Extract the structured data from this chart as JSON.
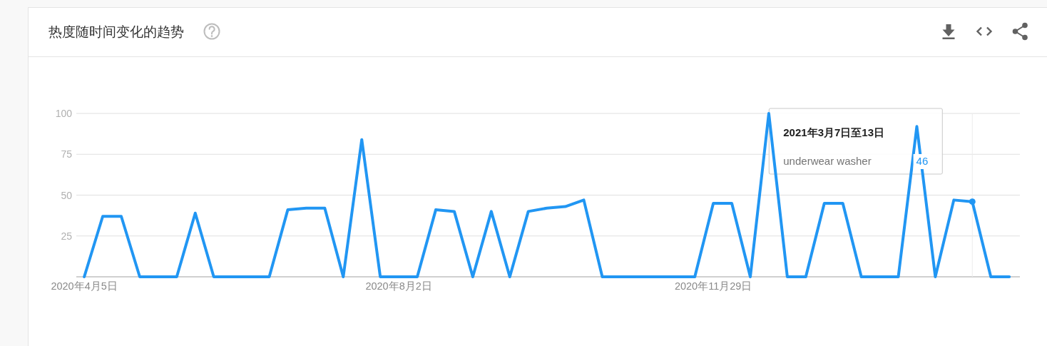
{
  "chart_data": {
    "type": "line",
    "title": "热度随时间变化的趋势",
    "x": [
      "2020-04-05",
      "2020-04-12",
      "2020-04-19",
      "2020-04-26",
      "2020-05-03",
      "2020-05-10",
      "2020-05-17",
      "2020-05-24",
      "2020-05-31",
      "2020-06-07",
      "2020-06-14",
      "2020-06-21",
      "2020-06-28",
      "2020-07-05",
      "2020-07-12",
      "2020-07-19",
      "2020-07-26",
      "2020-08-02",
      "2020-08-09",
      "2020-08-16",
      "2020-08-23",
      "2020-08-30",
      "2020-09-06",
      "2020-09-13",
      "2020-09-20",
      "2020-09-27",
      "2020-10-04",
      "2020-10-11",
      "2020-10-18",
      "2020-10-25",
      "2020-11-01",
      "2020-11-08",
      "2020-11-15",
      "2020-11-22",
      "2020-11-29",
      "2020-12-06",
      "2020-12-13",
      "2020-12-20",
      "2020-12-27",
      "2021-01-03",
      "2021-01-10",
      "2021-01-17",
      "2021-01-24",
      "2021-01-31",
      "2021-02-07",
      "2021-02-14",
      "2021-02-21",
      "2021-02-28",
      "2021-03-07",
      "2021-03-14",
      "2021-03-21"
    ],
    "series": [
      {
        "name": "underwear washer",
        "color": "#2196f3",
        "values": [
          0,
          37,
          37,
          0,
          0,
          0,
          39,
          0,
          0,
          0,
          0,
          41,
          42,
          42,
          0,
          84,
          0,
          0,
          0,
          41,
          40,
          0,
          40,
          0,
          40,
          42,
          43,
          47,
          0,
          0,
          0,
          0,
          0,
          0,
          45,
          45,
          0,
          100,
          0,
          0,
          45,
          45,
          0,
          0,
          0,
          92,
          0,
          47,
          46,
          0,
          0
        ]
      }
    ],
    "xlim": [
      "2020-04-02",
      "2021-03-25"
    ],
    "xticks": [
      {
        "value": "2020-04-05",
        "label": "2020年4月5日"
      },
      {
        "value": "2020-08-02",
        "label": "2020年8月2日"
      },
      {
        "value": "2020-11-29",
        "label": "2020年11月29日"
      }
    ],
    "ylim": [
      0,
      100
    ],
    "yticks": [
      25,
      50,
      75,
      100
    ],
    "grid": "y",
    "ref_lines": [
      {
        "axis": "x",
        "value": "2021-03-07",
        "color": "#ececec"
      }
    ],
    "annotations": [
      "2021年3月7日至13日",
      "46"
    ]
  }
}
